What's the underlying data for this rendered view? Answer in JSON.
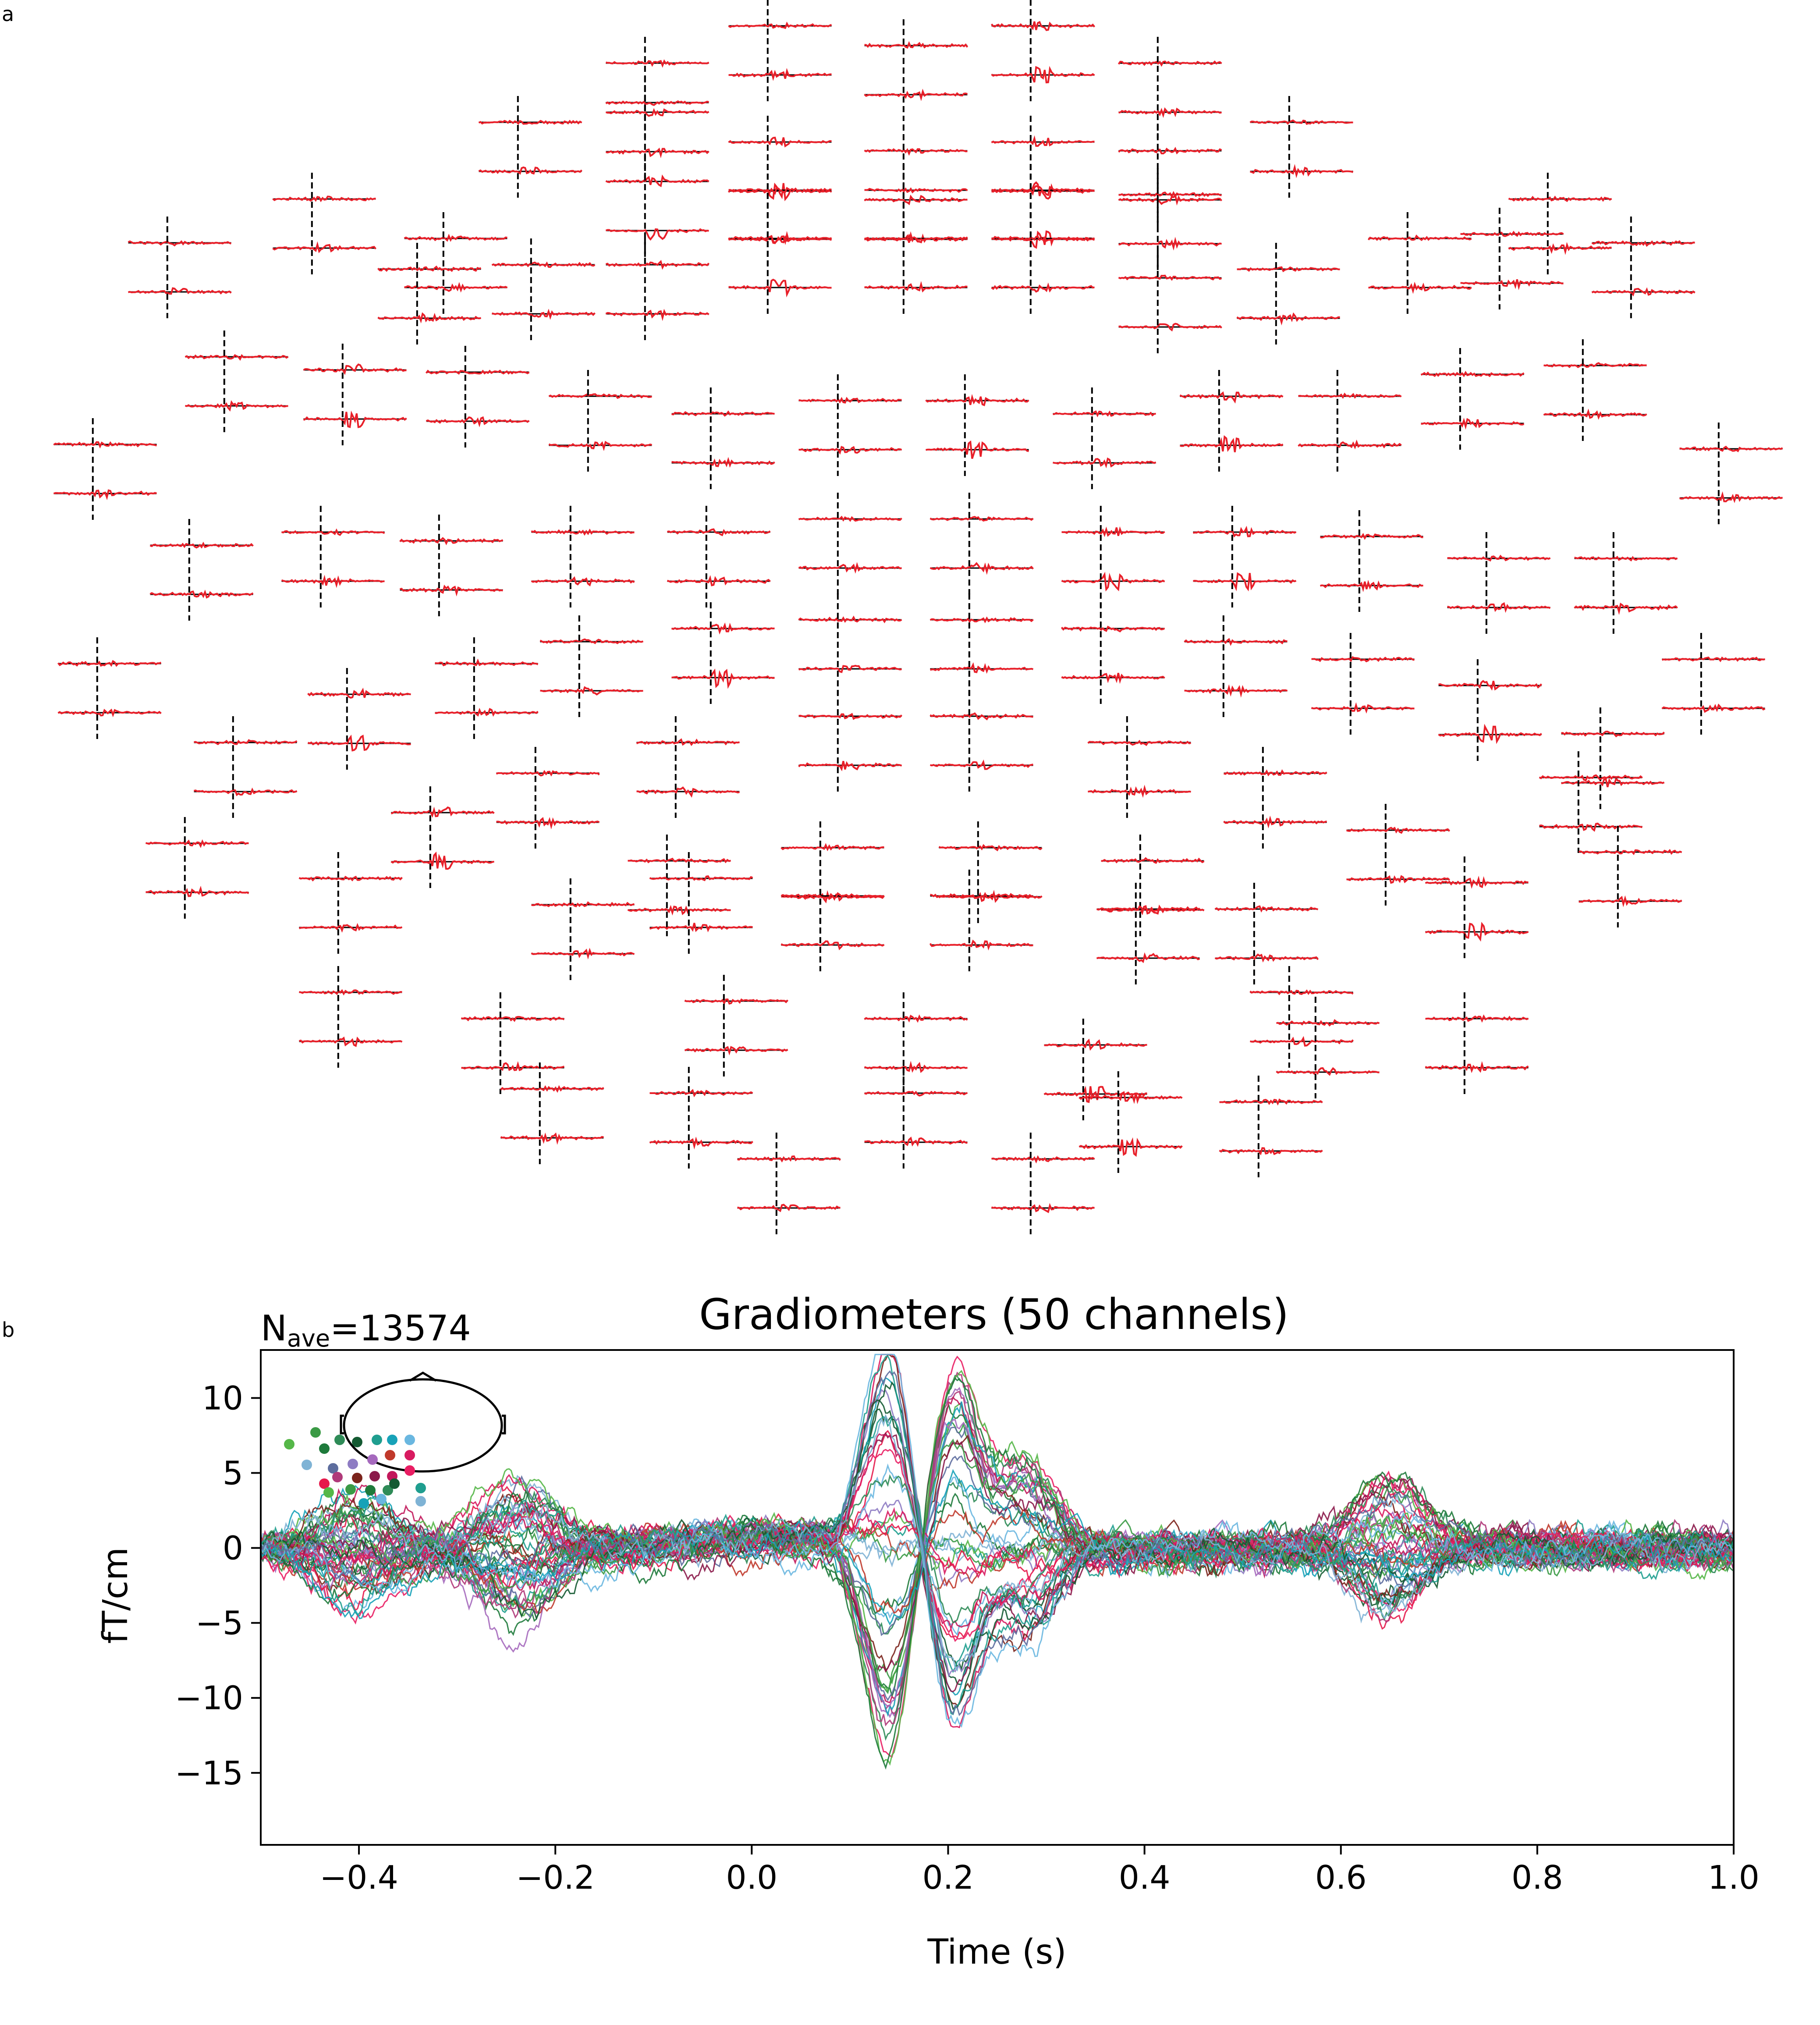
{
  "panels": {
    "a": {
      "letter": "a"
    },
    "b": {
      "letter": "b"
    }
  },
  "chart_data": [
    {
      "id": "a",
      "type": "line",
      "description_source": "sensor topography of evoked responses, one pair of gradiometer traces per sensor location",
      "trace_color": "#e8202a",
      "marker_color": "#000000",
      "title": "",
      "xlabel": "",
      "ylabel": ""
    },
    {
      "id": "b",
      "type": "line",
      "title": "Gradiometers (50 channels)",
      "nave": {
        "base": "N",
        "sub": "ave",
        "rest": "=13574"
      },
      "xlabel": "Time (s)",
      "ylabel": "fT/cm",
      "xlim": [
        -0.5,
        1.0
      ],
      "ylim": [
        -19.8,
        13.2
      ],
      "xticks": [
        -0.4,
        -0.2,
        0.0,
        0.2,
        0.4,
        0.6,
        0.8,
        1.0
      ],
      "xtick_labels": [
        "−0.4",
        "−0.2",
        "0.0",
        "0.2",
        "0.4",
        "0.6",
        "0.8",
        "1.0"
      ],
      "yticks": [
        10,
        5,
        0,
        -5,
        -10,
        -15
      ],
      "ytick_labels": [
        "10",
        "5",
        "0",
        "−5",
        "−10",
        "−15"
      ],
      "grid": false,
      "legend": "top-left inset sensor map",
      "series_count": 50,
      "series_colors": [
        "#55b748",
        "#3a9a45",
        "#1e7a3b",
        "#2e8b57",
        "#145a32",
        "#1f9e8f",
        "#17a2b8",
        "#6ab7e0",
        "#7fb3d5",
        "#5d6d9e",
        "#8e7cc3",
        "#a569bd",
        "#c0392b",
        "#d81b60",
        "#e6194b",
        "#b03a7a",
        "#7b241c",
        "#8b1a4a",
        "#c2185b",
        "#e91e63"
      ],
      "key_values": [
        {
          "t": -0.4,
          "y_min": -6.5
        },
        {
          "t": -0.24,
          "y_max": 5.6
        },
        {
          "t": 0.14,
          "y_min": -18.2
        },
        {
          "t": 0.2,
          "y_max": 12.3
        },
        {
          "t": 0.2,
          "y_min": -15.3
        },
        {
          "t": 0.28,
          "y_max": 8.0
        },
        {
          "t": 0.65,
          "y_max": 6.0
        },
        {
          "t": 0.67,
          "y_min": -6.9
        }
      ]
    }
  ]
}
